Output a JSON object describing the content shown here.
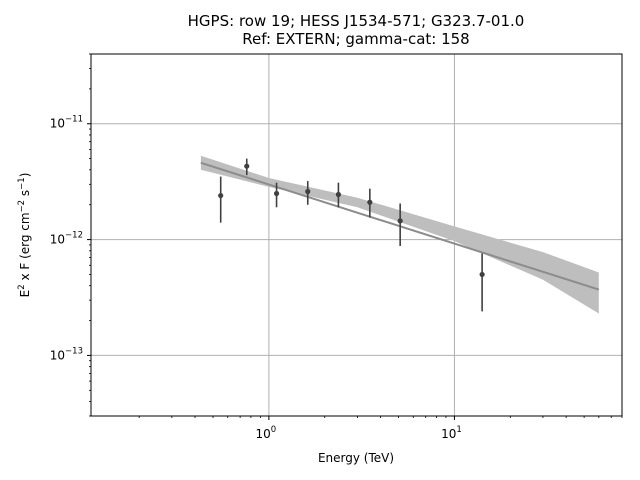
{
  "chart_data": {
    "type": "scatter",
    "title": [
      "HGPS: row 19; HESS J1534-571; G323.7-01.0",
      "Ref: EXTERN; gamma-cat: 158"
    ],
    "xlabel": "Energy (TeV)",
    "ylabel": {
      "base": "E",
      "mid": " x F (erg cm",
      "mid2": " s",
      "end": ")",
      "sup1": "2",
      "sup2": "−2",
      "sup3": "−1"
    },
    "xscale": "log",
    "yscale": "log",
    "xlim": [
      0.11,
      80
    ],
    "ylim": [
      3e-14,
      4e-11
    ],
    "grid": true,
    "x_major_ticks": [
      {
        "value": 1,
        "base": "10",
        "exp": "0"
      },
      {
        "value": 10,
        "base": "10",
        "exp": "1"
      }
    ],
    "y_major_ticks": [
      {
        "value": 1e-13,
        "base": "10",
        "exp": "−13"
      },
      {
        "value": 1e-12,
        "base": "10",
        "exp": "−12"
      },
      {
        "value": 1e-11,
        "base": "10",
        "exp": "−11"
      }
    ],
    "points": [
      {
        "x": 0.55,
        "y": 2.4e-12,
        "ylo": 1.4e-12,
        "yhi": 3.5e-12
      },
      {
        "x": 0.76,
        "y": 4.3e-12,
        "ylo": 3.6e-12,
        "yhi": 5e-12
      },
      {
        "x": 1.1,
        "y": 2.5e-12,
        "ylo": 1.9e-12,
        "yhi": 3.1e-12
      },
      {
        "x": 1.62,
        "y": 2.6e-12,
        "ylo": 2e-12,
        "yhi": 3.2e-12
      },
      {
        "x": 2.37,
        "y": 2.45e-12,
        "ylo": 1.9e-12,
        "yhi": 3.1e-12
      },
      {
        "x": 3.5,
        "y": 2.1e-12,
        "ylo": 1.55e-12,
        "yhi": 2.75e-12
      },
      {
        "x": 5.1,
        "y": 1.45e-12,
        "ylo": 8.8e-13,
        "yhi": 2.05e-12
      },
      {
        "x": 14.1,
        "y": 5e-13,
        "ylo": 2.4e-13,
        "yhi": 7.6e-13
      }
    ],
    "model": {
      "x": [
        0.43,
        60
      ],
      "y": [
        4.6e-12,
        3.7e-13
      ]
    },
    "band": {
      "x": [
        0.43,
        1.0,
        3.0,
        10,
        30,
        60
      ],
      "ylo": [
        4e-12,
        2.85e-12,
        1.9e-12,
        9.7e-13,
        4.5e-13,
        2.3e-13
      ],
      "yhi": [
        5.3e-12,
        3.4e-12,
        2.3e-12,
        1.3e-12,
        7.8e-13,
        5.2e-13
      ]
    },
    "colors": {
      "points": "#404040",
      "model": "#8c8c8c",
      "band": "#bebebe",
      "grid": "#b0b0b0"
    }
  }
}
